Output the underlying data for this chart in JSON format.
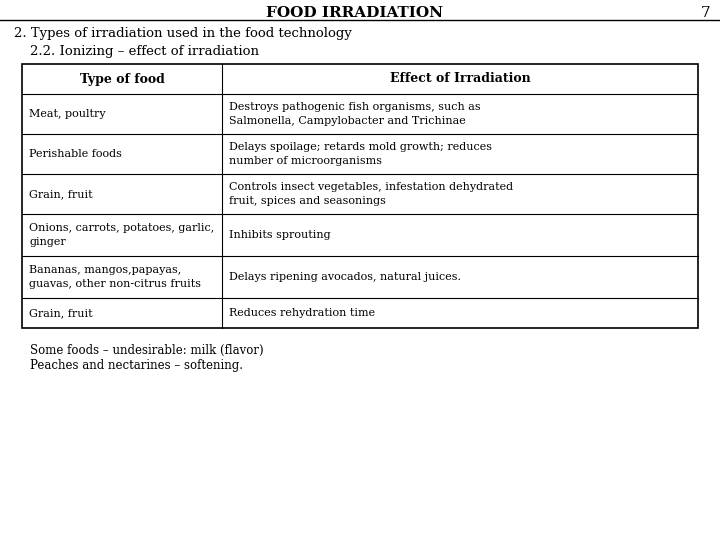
{
  "title": "FOOD IRRADIATION",
  "page_number": "7",
  "subtitle1": "2. Types of irradiation used in the food technology",
  "subtitle2": "2.2. Ionizing – effect of irradiation",
  "col_header1": "Type of food",
  "col_header2": "Effect of Irradiation",
  "rows": [
    [
      "Meat, poultry",
      "Destroys pathogenic fish organisms, such as\nSalmonella, Campylobacter and Trichinae"
    ],
    [
      "Perishable foods",
      "Delays spoilage; retards mold growth; reduces\nnumber of microorganisms"
    ],
    [
      "Grain, fruit",
      "Controls insect vegetables, infestation dehydrated\nfruit, spices and seasonings"
    ],
    [
      "Onions, carrots, potatoes, garlic,\nginger",
      "Inhibits sprouting"
    ],
    [
      "Bananas, mangos,papayas,\nguavas, other non-citrus fruits",
      "Delays ripening avocados, natural juices."
    ],
    [
      "Grain, fruit",
      "Reduces rehydration time"
    ]
  ],
  "footer1": "Some foods – undesirable: milk (flavor)",
  "footer2": "Peaches and nectarines – softening.",
  "bg_color": "#ffffff",
  "text_color": "#000000",
  "table_border_color": "#000000",
  "title_fontsize": 11,
  "header_fontsize": 9,
  "cell_fontsize": 8,
  "subtitle1_fontsize": 9.5,
  "subtitle2_fontsize": 9.5,
  "footer_fontsize": 8.5,
  "font_family": "serif"
}
